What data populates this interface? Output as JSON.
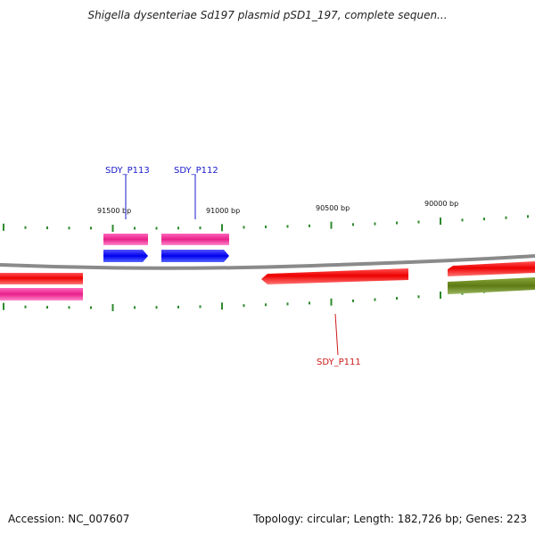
{
  "title": "Shigella dysenteriae Sd197 plasmid pSD1_197, complete sequen...",
  "footer": {
    "accession": "Accession: NC_007607",
    "summary": "Topology: circular; Length: 182,726 bp; Genes: 223"
  },
  "position_labels": [
    "91500 bp",
    "91000 bp",
    "90500 bp",
    "90000 bp"
  ],
  "gene_labels": [
    {
      "text": "SDY_P113",
      "color": "#1a1acc"
    },
    {
      "text": "SDY_P112",
      "color": "#1a1acc"
    },
    {
      "text": "SDY_P111",
      "color": "#cc1a1a"
    }
  ],
  "colors": {
    "backbone": "#8a8a8a",
    "ticks": "#2d8a2d",
    "red_gene": "#ee1111",
    "pink_gene": "#e8208a",
    "blue_gene": "#1111ee",
    "olive_gene": "#6e8a1a"
  }
}
